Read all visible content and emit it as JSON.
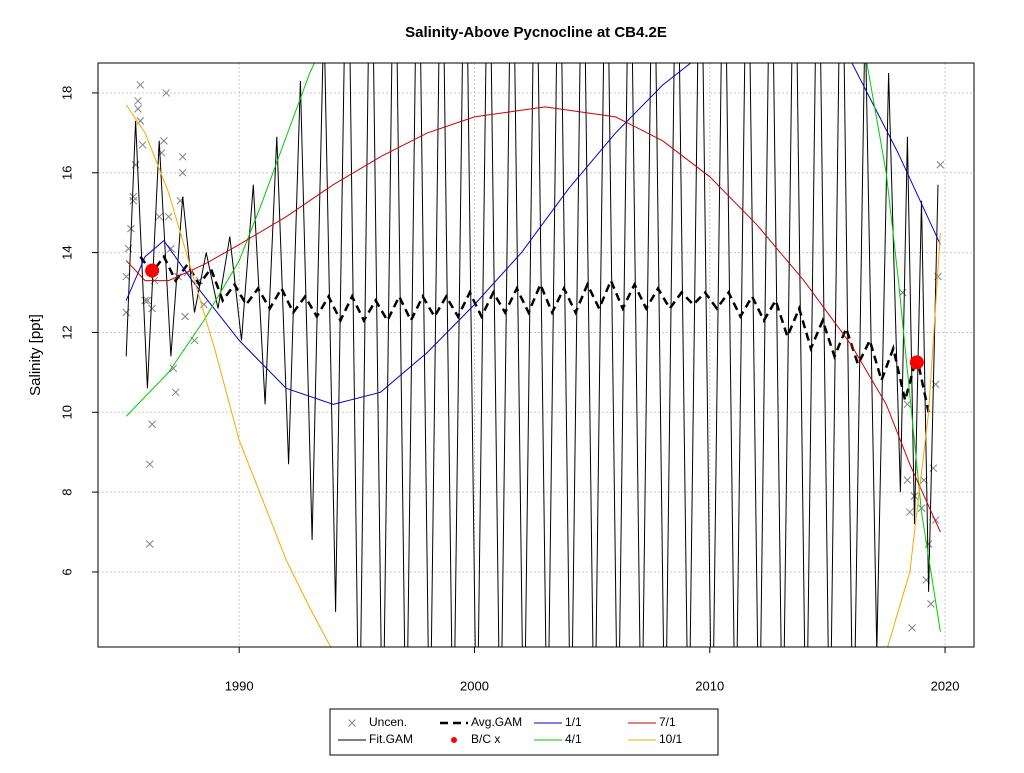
{
  "chart_data": {
    "type": "line",
    "title": "Salinity-Above Pycnocline at CB4.2E",
    "y_label": "Salinity [ppt]",
    "xlim": [
      1984.0,
      2021.23
    ],
    "ylim": [
      4.12,
      18.75
    ],
    "xticks": [
      1990,
      2000,
      2010,
      2020
    ],
    "yticks": [
      6,
      8,
      10,
      12,
      14,
      16,
      18
    ],
    "grid": true,
    "series": [
      {
        "name": "Uncen.",
        "color": "#808080",
        "mark": "x",
        "x": [
          1985.2,
          1985.2,
          1985.3,
          1985.4,
          1985.5,
          1985.5,
          1985.6,
          1985.7,
          1985.7,
          1985.8,
          1985.8,
          1985.9,
          1986.0,
          1986.1,
          1986.2,
          1986.3,
          1986.2,
          1986.3,
          1986.4,
          1986.6,
          1986.7,
          1986.8,
          1986.9,
          1987.0,
          1987.1,
          1987.2,
          1987.3,
          1987.4,
          1987.5,
          1987.6,
          1987.6,
          1987.7,
          1987.8,
          1988.1,
          1988.3,
          1988.5,
          2018.2,
          2018.4,
          2018.4,
          2018.5,
          2018.6,
          2018.7,
          2019.0,
          2019.1,
          2019.2,
          2019.3,
          2019.4,
          2019.5,
          2019.6,
          2019.6,
          2019.8,
          2019.7
        ],
        "values": [
          12.5,
          13.4,
          14.1,
          14.6,
          15.4,
          15.3,
          16.2,
          17.6,
          17.8,
          18.2,
          17.3,
          16.7,
          12.8,
          12.8,
          8.7,
          9.7,
          6.7,
          12.6,
          13.3,
          14.9,
          16.5,
          16.8,
          18.0,
          14.9,
          14.1,
          11.1,
          10.5,
          13.4,
          15.3,
          16.0,
          16.4,
          12.4,
          13.5,
          11.8,
          13.3,
          12.7,
          13.0,
          10.2,
          8.3,
          7.5,
          4.6,
          7.9,
          7.6,
          8.3,
          5.8,
          6.7,
          5.2,
          8.6,
          7.3,
          10.7,
          16.2,
          13.4
        ]
      },
      {
        "name": "Fit.GAM",
        "color": "#000000",
        "mark": "line",
        "x": [
          1985.2,
          1985.6,
          1986.1,
          1986.6,
          1987.1,
          1987.6,
          1988.1,
          1988.6,
          1989.1,
          1989.6,
          1990.1,
          1990.6,
          1991.1,
          1991.6,
          1992.1,
          1992.6,
          1993.1,
          1993.6,
          1994.1,
          1994.6,
          1995.1,
          1995.6,
          1996.1,
          1996.6,
          1997.1,
          1997.6,
          1998.1,
          1998.6,
          1999.1,
          1999.6,
          2000.1,
          2000.6,
          2001.1,
          2001.6,
          2002.1,
          2002.6,
          2003.1,
          2003.6,
          2004.1,
          2004.6,
          2005.1,
          2005.6,
          2006.1,
          2006.6,
          2007.1,
          2007.6,
          2008.1,
          2008.6,
          2009.1,
          2009.6,
          2010.1,
          2010.6,
          2011.1,
          2011.6,
          2012.1,
          2012.6,
          2013.1,
          2013.6,
          2014.1,
          2014.6,
          2015.1,
          2015.6,
          2016.1,
          2016.6,
          2017.1,
          2017.6,
          2018.1,
          2018.4,
          2018.7,
          2019.0,
          2019.3,
          2019.7
        ],
        "values": [
          11.4,
          17.3,
          10.6,
          16.8,
          11.4,
          15.4,
          12.5,
          14.0,
          12.6,
          14.4,
          11.8,
          15.7,
          10.2,
          16.9,
          8.7,
          18.3,
          6.8,
          20,
          5,
          24,
          1,
          24,
          1,
          24,
          1,
          24,
          1,
          24,
          1,
          24,
          1,
          24,
          1,
          24,
          1,
          24,
          1,
          24,
          1,
          24,
          1,
          24,
          1,
          24,
          1,
          24,
          1,
          24,
          1,
          24,
          1,
          24,
          1,
          24,
          1,
          24,
          1,
          24,
          1,
          24,
          1,
          24,
          1,
          20,
          4,
          18.5,
          8,
          16.9,
          7.2,
          15.3,
          5.5,
          15.7
        ]
      },
      {
        "name": "Avg.GAM",
        "color": "#000000",
        "mark": "dashed",
        "x": [
          1985.8,
          1986.3,
          1986.8,
          1987.3,
          1987.8,
          1988.3,
          1988.8,
          1989.3,
          1989.8,
          1990.3,
          1990.8,
          1991.3,
          1991.8,
          1992.3,
          1992.8,
          1993.3,
          1993.8,
          1994.3,
          1994.8,
          1995.3,
          1995.8,
          1996.3,
          1996.8,
          1997.3,
          1997.8,
          1998.3,
          1998.8,
          1999.3,
          1999.8,
          2000.3,
          2000.8,
          2001.3,
          2001.8,
          2002.3,
          2002.8,
          2003.3,
          2003.8,
          2004.3,
          2004.8,
          2005.3,
          2005.8,
          2006.3,
          2006.8,
          2007.3,
          2007.8,
          2008.3,
          2008.8,
          2009.3,
          2009.8,
          2010.3,
          2010.8,
          2011.3,
          2011.8,
          2012.3,
          2012.8,
          2013.3,
          2013.8,
          2014.3,
          2014.8,
          2015.3,
          2015.8,
          2016.3,
          2016.8,
          2017.3,
          2017.8,
          2018.3,
          2018.8,
          2019.3
        ],
        "values": [
          13.9,
          13.5,
          13.9,
          13.3,
          13.7,
          13.2,
          13.6,
          12.8,
          13.2,
          12.7,
          13.1,
          12.6,
          13.1,
          12.5,
          12.9,
          12.4,
          12.9,
          12.3,
          12.9,
          12.3,
          12.8,
          12.3,
          12.9,
          12.3,
          12.9,
          12.4,
          12.9,
          12.4,
          13.0,
          12.4,
          13.0,
          12.5,
          13.1,
          12.5,
          13.2,
          12.5,
          13.1,
          12.5,
          13.2,
          12.6,
          13.3,
          12.6,
          13.2,
          12.6,
          13.1,
          12.6,
          13.0,
          12.7,
          13.0,
          12.6,
          13.0,
          12.4,
          12.9,
          12.3,
          12.8,
          11.9,
          12.6,
          11.6,
          12.3,
          11.4,
          12.1,
          11.2,
          11.8,
          10.8,
          11.6,
          10.3,
          11.4,
          10.0
        ]
      },
      {
        "name": "B/C x",
        "color": "#ff0000",
        "mark": "dot",
        "x": [
          1986.3,
          2018.8
        ],
        "values": [
          13.55,
          11.25
        ]
      },
      {
        "name": "1/1",
        "color": "#0000cc",
        "mark": "line",
        "x": [
          1985.2,
          1986,
          1986.8,
          1988,
          1990,
          1992,
          1994,
          1996,
          1998,
          2000,
          2002,
          2004,
          2006,
          2008,
          2009.3,
          2012,
          2014,
          2016,
          2018,
          2019.8
        ],
        "values": [
          12.8,
          13.9,
          14.3,
          13.3,
          11.8,
          10.6,
          10.2,
          10.5,
          11.5,
          12.7,
          14.0,
          15.6,
          17.0,
          18.2,
          18.8,
          20,
          20,
          18.8,
          16.5,
          14.2
        ]
      },
      {
        "name": "4/1",
        "color": "#00cc00",
        "mark": "line",
        "x": [
          1985.2,
          1987,
          1988.5,
          1990,
          1991,
          1992,
          1993,
          1993.4,
          null,
          2016.6,
          2017.5,
          2018,
          2019,
          2019.8
        ],
        "values": [
          9.9,
          11,
          12.3,
          13.8,
          15.3,
          16.9,
          18.5,
          19,
          null,
          19,
          16,
          13.4,
          7.5,
          4.5
        ]
      },
      {
        "name": "7/1",
        "color": "#cc0000",
        "mark": "line",
        "x": [
          1985.2,
          1986,
          1987,
          1988.5,
          1990,
          1992,
          1994,
          1996,
          1998,
          2000,
          2003,
          2006,
          2008,
          2010,
          2012,
          2014,
          2016,
          2017.5,
          2018.5,
          2019.8
        ],
        "values": [
          13.8,
          13.3,
          13.3,
          13.7,
          14.2,
          14.9,
          15.7,
          16.4,
          17.0,
          17.4,
          17.65,
          17.4,
          16.8,
          15.9,
          14.7,
          13.3,
          11.7,
          10.2,
          8.7,
          7.0
        ]
      },
      {
        "name": "10/1",
        "color": "#ffa500",
        "mark": "line",
        "x": [
          1985.2,
          1986,
          1987,
          1988,
          1989,
          1990,
          1991,
          1992,
          1993,
          1994,
          null,
          2017.5,
          2018.5,
          2019.3,
          2019.8
        ],
        "values": [
          17.7,
          17.0,
          15.5,
          13.5,
          11.5,
          9.3,
          7.8,
          6.3,
          5.1,
          4.0,
          null,
          4.0,
          6,
          10,
          14.5
        ]
      }
    ]
  }
}
